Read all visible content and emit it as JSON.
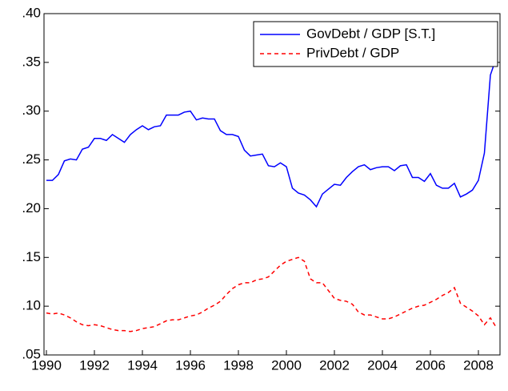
{
  "chart_data": {
    "type": "line",
    "x": [
      1990,
      1990.25,
      1990.5,
      1990.75,
      1991,
      1991.25,
      1991.5,
      1991.75,
      1992,
      1992.25,
      1992.5,
      1992.75,
      1993,
      1993.25,
      1993.5,
      1993.75,
      1994,
      1994.25,
      1994.5,
      1994.75,
      1995,
      1995.25,
      1995.5,
      1995.75,
      1996,
      1996.25,
      1996.5,
      1996.75,
      1997,
      1997.25,
      1997.5,
      1997.75,
      1998,
      1998.25,
      1998.5,
      1998.75,
      1999,
      1999.25,
      1999.5,
      1999.75,
      2000,
      2000.25,
      2000.5,
      2000.75,
      2001,
      2001.25,
      2001.5,
      2001.75,
      2002,
      2002.25,
      2002.5,
      2002.75,
      2003,
      2003.25,
      2003.5,
      2003.75,
      2004,
      2004.25,
      2004.5,
      2004.75,
      2005,
      2005.25,
      2005.5,
      2005.75,
      2006,
      2006.25,
      2006.5,
      2006.75,
      2007,
      2007.25,
      2007.5,
      2007.75,
      2008,
      2008.25,
      2008.5,
      2008.75
    ],
    "series": [
      {
        "name": "GovDebt / GDP [S.T.]",
        "color": "#0000ff",
        "linestyle": "solid",
        "values": [
          0.229,
          0.229,
          0.235,
          0.249,
          0.251,
          0.25,
          0.261,
          0.263,
          0.272,
          0.272,
          0.27,
          0.276,
          0.272,
          0.268,
          0.276,
          0.281,
          0.285,
          0.281,
          0.284,
          0.285,
          0.296,
          0.296,
          0.296,
          0.299,
          0.3,
          0.291,
          0.293,
          0.292,
          0.292,
          0.28,
          0.276,
          0.276,
          0.274,
          0.26,
          0.254,
          0.255,
          0.256,
          0.244,
          0.243,
          0.247,
          0.243,
          0.221,
          0.216,
          0.214,
          0.209,
          0.202,
          0.215,
          0.22,
          0.225,
          0.224,
          0.232,
          0.238,
          0.243,
          0.245,
          0.24,
          0.242,
          0.243,
          0.243,
          0.239,
          0.244,
          0.245,
          0.232,
          0.232,
          0.228,
          0.236,
          0.224,
          0.221,
          0.221,
          0.226,
          0.212,
          0.215,
          0.219,
          0.229,
          0.257,
          0.337,
          0.355
        ]
      },
      {
        "name": "PrivDebt / GDP",
        "color": "#ff0000",
        "linestyle": "dashed",
        "values": [
          0.093,
          0.092,
          0.093,
          0.091,
          0.088,
          0.084,
          0.081,
          0.08,
          0.081,
          0.08,
          0.078,
          0.076,
          0.075,
          0.075,
          0.074,
          0.075,
          0.077,
          0.078,
          0.079,
          0.082,
          0.085,
          0.086,
          0.086,
          0.088,
          0.09,
          0.091,
          0.094,
          0.098,
          0.101,
          0.105,
          0.112,
          0.118,
          0.122,
          0.124,
          0.124,
          0.127,
          0.128,
          0.13,
          0.136,
          0.142,
          0.146,
          0.148,
          0.15,
          0.146,
          0.128,
          0.124,
          0.124,
          0.116,
          0.108,
          0.106,
          0.105,
          0.102,
          0.094,
          0.091,
          0.091,
          0.089,
          0.087,
          0.087,
          0.089,
          0.092,
          0.095,
          0.098,
          0.1,
          0.101,
          0.104,
          0.107,
          0.111,
          0.114,
          0.119,
          0.103,
          0.099,
          0.095,
          0.09,
          0.081,
          0.088,
          0.078
        ]
      }
    ],
    "xlim": [
      1989.9,
      2008.9
    ],
    "xticks": [
      1990,
      1992,
      1994,
      1996,
      1998,
      2000,
      2002,
      2004,
      2006,
      2008
    ],
    "ylim": [
      0.05,
      0.4
    ],
    "yticks": [
      {
        "value": 0.05,
        "label": ".05"
      },
      {
        "value": 0.1,
        "label": ".10"
      },
      {
        "value": 0.15,
        "label": ".15"
      },
      {
        "value": 0.2,
        "label": ".20"
      },
      {
        "value": 0.25,
        "label": ".25"
      },
      {
        "value": 0.3,
        "label": ".30"
      },
      {
        "value": 0.35,
        "label": ".35"
      },
      {
        "value": 0.4,
        "label": ".40"
      }
    ],
    "legend": "upper-right"
  }
}
